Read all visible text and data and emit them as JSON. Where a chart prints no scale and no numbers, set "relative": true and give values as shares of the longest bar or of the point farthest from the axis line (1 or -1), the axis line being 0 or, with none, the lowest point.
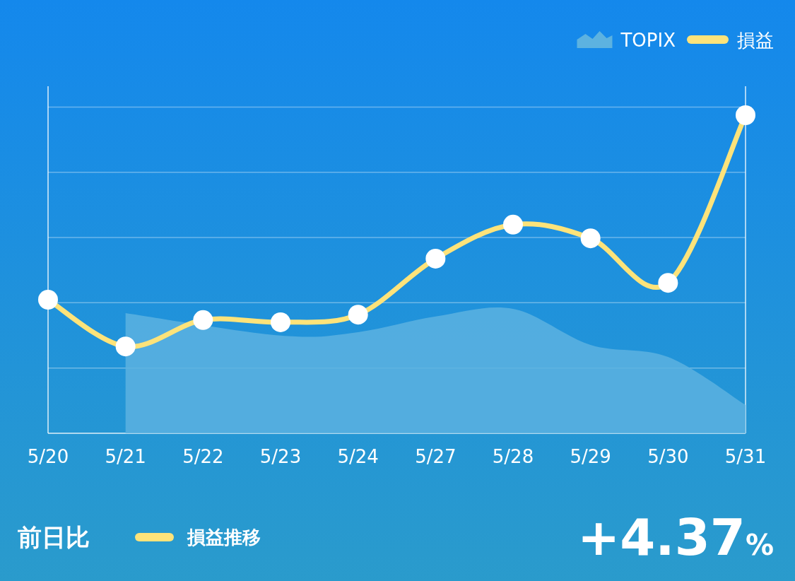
{
  "chart_data": {
    "type": "line",
    "relative": true,
    "categories": [
      "5/20",
      "5/21",
      "5/22",
      "5/23",
      "5/24",
      "5/27",
      "5/28",
      "5/29",
      "5/30",
      "5/31"
    ],
    "series": [
      {
        "name": "TOPIX",
        "type": "area",
        "color": "#5cb2e0",
        "values": [
          null,
          0.378,
          null,
          0.307,
          0.318,
          0.367,
          0.391,
          0.278,
          0.24,
          0.089
        ]
      },
      {
        "name": "損益",
        "type": "line",
        "color": "#fde37a",
        "marker": "circle",
        "values": [
          0.42,
          0.273,
          0.356,
          0.349,
          0.373,
          0.549,
          0.656,
          0.613,
          0.473,
          1
        ]
      }
    ],
    "grid": "y",
    "legend": "top right",
    "annotations": [
      "前日比",
      "損益推移",
      "+4.37%"
    ]
  }
}
